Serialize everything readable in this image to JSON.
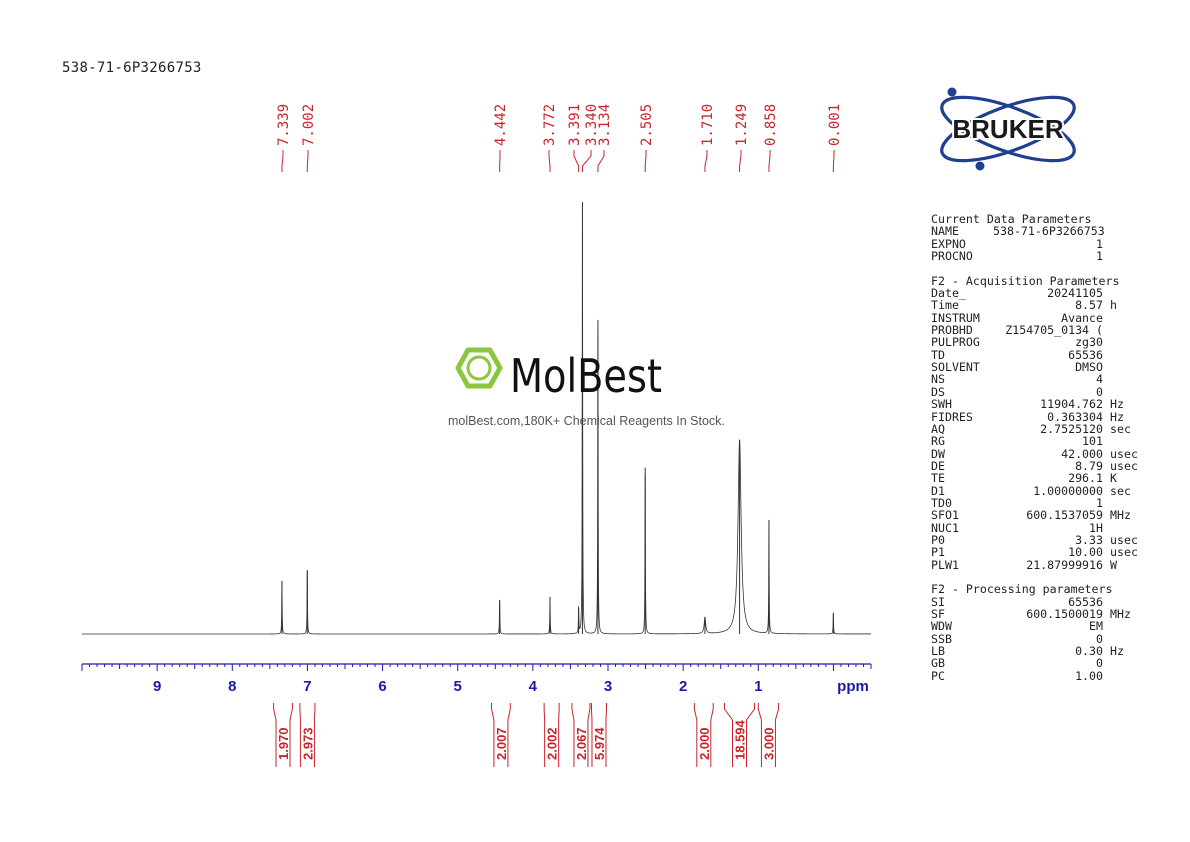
{
  "sample_title": "538-71-6P3266753",
  "watermark": {
    "brand": "MolBest",
    "tagline": "molBest.com,180K+ Chemical Reagents In Stock."
  },
  "logo": {
    "text": "BRUKER"
  },
  "colors": {
    "peak_labels": "#c8242a",
    "axis": "#1a1aa8",
    "spectrum": "#333333",
    "logo": "#1f3f8f",
    "watermark_green": "#8cc63f"
  },
  "chart_data": {
    "type": "line",
    "title": "538-71-6P3266753",
    "xlabel": "ppm",
    "xlim": [
      10.0,
      -0.5
    ],
    "x_ticks": [
      9,
      8,
      7,
      6,
      5,
      4,
      3,
      2,
      1
    ],
    "x_tick_labels": [
      "9",
      "8",
      "7",
      "6",
      "5",
      "4",
      "3",
      "2",
      "1"
    ],
    "peak_labels": [
      "7.339",
      "7.002",
      "4.442",
      "3.772",
      "3.391",
      "3.340",
      "3.134",
      "2.505",
      "1.710",
      "1.249",
      "0.858",
      "0.001"
    ],
    "peaks": [
      {
        "ppm": 7.339,
        "height": 0.123
      },
      {
        "ppm": 7.002,
        "height": 0.148
      },
      {
        "ppm": 4.442,
        "height": 0.079
      },
      {
        "ppm": 3.772,
        "height": 0.086
      },
      {
        "ppm": 3.391,
        "height": 0.06
      },
      {
        "ppm": 3.34,
        "height": 1.0
      },
      {
        "ppm": 3.134,
        "height": 0.727
      },
      {
        "ppm": 2.505,
        "height": 0.385
      },
      {
        "ppm": 1.71,
        "height": 0.038
      },
      {
        "ppm": 1.249,
        "height": 0.449
      },
      {
        "ppm": 0.858,
        "height": 0.264
      },
      {
        "ppm": 0.001,
        "height": 0.049
      }
    ],
    "integrals": [
      {
        "value": "1.970",
        "from": 7.45,
        "to": 7.2
      },
      {
        "value": "2.973",
        "from": 7.1,
        "to": 6.9
      },
      {
        "value": "2.007",
        "from": 4.55,
        "to": 4.3
      },
      {
        "value": "2.002",
        "from": 3.85,
        "to": 3.65
      },
      {
        "value": "2.067",
        "from": 3.48,
        "to": 3.24
      },
      {
        "value": "5.974",
        "from": 3.22,
        "to": 3.02
      },
      {
        "value": "2.000",
        "from": 1.85,
        "to": 1.6
      },
      {
        "value": "18.594",
        "from": 1.45,
        "to": 1.05
      },
      {
        "value": "3.000",
        "from": 1.0,
        "to": 0.73
      }
    ]
  },
  "parameters": {
    "current_header": "Current Data Parameters",
    "current": [
      {
        "key": "NAME",
        "value": "538-71-6P3266753",
        "unit": ""
      },
      {
        "key": "EXPNO",
        "value": "1",
        "unit": ""
      },
      {
        "key": "PROCNO",
        "value": "1",
        "unit": ""
      }
    ],
    "acq_header": "F2 - Acquisition Parameters",
    "acquisition": [
      {
        "key": "Date_",
        "value": "20241105",
        "unit": ""
      },
      {
        "key": "Time",
        "value": "8.57",
        "unit": "h"
      },
      {
        "key": "INSTRUM",
        "value": "Avance",
        "unit": ""
      },
      {
        "key": "PROBHD",
        "value": "Z154705_0134 (",
        "unit": ""
      },
      {
        "key": "PULPROG",
        "value": "zg30",
        "unit": ""
      },
      {
        "key": "TD",
        "value": "65536",
        "unit": ""
      },
      {
        "key": "SOLVENT",
        "value": "DMSO",
        "unit": ""
      },
      {
        "key": "NS",
        "value": "4",
        "unit": ""
      },
      {
        "key": "DS",
        "value": "0",
        "unit": ""
      },
      {
        "key": "SWH",
        "value": "11904.762",
        "unit": "Hz"
      },
      {
        "key": "FIDRES",
        "value": "0.363304",
        "unit": "Hz"
      },
      {
        "key": "AQ",
        "value": "2.7525120",
        "unit": "sec"
      },
      {
        "key": "RG",
        "value": "101",
        "unit": ""
      },
      {
        "key": "DW",
        "value": "42.000",
        "unit": "usec"
      },
      {
        "key": "DE",
        "value": "8.79",
        "unit": "usec"
      },
      {
        "key": "TE",
        "value": "296.1",
        "unit": "K"
      },
      {
        "key": "D1",
        "value": "1.00000000",
        "unit": "sec"
      },
      {
        "key": "TD0",
        "value": "1",
        "unit": ""
      },
      {
        "key": "SFO1",
        "value": "600.1537059",
        "unit": "MHz"
      },
      {
        "key": "NUC1",
        "value": "1H",
        "unit": ""
      },
      {
        "key": "P0",
        "value": "3.33",
        "unit": "usec"
      },
      {
        "key": "P1",
        "value": "10.00",
        "unit": "usec"
      },
      {
        "key": "PLW1",
        "value": "21.87999916",
        "unit": "W"
      }
    ],
    "proc_header": "F2 - Processing parameters",
    "processing": [
      {
        "key": "SI",
        "value": "65536",
        "unit": ""
      },
      {
        "key": "SF",
        "value": "600.1500019",
        "unit": "MHz"
      },
      {
        "key": "WDW",
        "value": "EM",
        "unit": ""
      },
      {
        "key": "SSB",
        "value": "0",
        "unit": ""
      },
      {
        "key": "LB",
        "value": "0.30",
        "unit": "Hz"
      },
      {
        "key": "GB",
        "value": "0",
        "unit": ""
      },
      {
        "key": "PC",
        "value": "1.00",
        "unit": ""
      }
    ]
  }
}
